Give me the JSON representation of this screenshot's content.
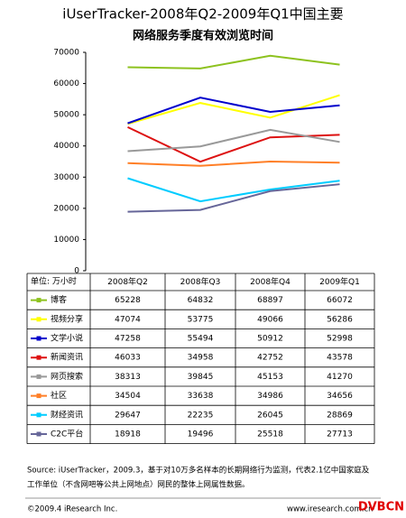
{
  "chart_data": {
    "type": "line",
    "title": "iUserTracker-2008年Q2-2009年Q1中国主要",
    "subtitle": "网络服务季度有效浏览时间",
    "unit_label": "单位: 万小时",
    "categories": [
      "2008年Q2",
      "2008年Q3",
      "2008年Q4",
      "2009年Q1"
    ],
    "series": [
      {
        "name": "博客",
        "color": "#8dc21f",
        "values": [
          65228,
          64832,
          68897,
          66072
        ]
      },
      {
        "name": "视频分享",
        "color": "#ffff00",
        "values": [
          47074,
          53775,
          49066,
          56286
        ]
      },
      {
        "name": "文学小说",
        "color": "#0000cc",
        "values": [
          47258,
          55494,
          50912,
          52998
        ]
      },
      {
        "name": "新闻资讯",
        "color": "#dd1111",
        "values": [
          46033,
          34958,
          42752,
          43578
        ]
      },
      {
        "name": "网页搜索",
        "color": "#999999",
        "values": [
          38313,
          39845,
          45153,
          41270
        ]
      },
      {
        "name": "社区",
        "color": "#ff7f27",
        "values": [
          34504,
          33638,
          34986,
          34656
        ]
      },
      {
        "name": "财经资讯",
        "color": "#00ccff",
        "values": [
          29647,
          22235,
          26045,
          28869
        ]
      },
      {
        "name": "C2C平台",
        "color": "#666699",
        "values": [
          18918,
          19496,
          25518,
          27713
        ]
      }
    ],
    "ylim": [
      0,
      70000
    ],
    "yticks": [
      0,
      10000,
      20000,
      30000,
      40000,
      50000,
      60000,
      70000
    ],
    "source": [
      "Source: iUserTracker，2009.3，基于对10万多名样本的长期网络行为监测，代表2.1亿中国家庭及",
      "工作单位（不含网吧等公共上网地点）网民的整体上网属性数据。"
    ],
    "copyright": "©2009.4 iResearch Inc.",
    "website": "www.iresearch.com.cn",
    "watermark": "DVBCN"
  }
}
